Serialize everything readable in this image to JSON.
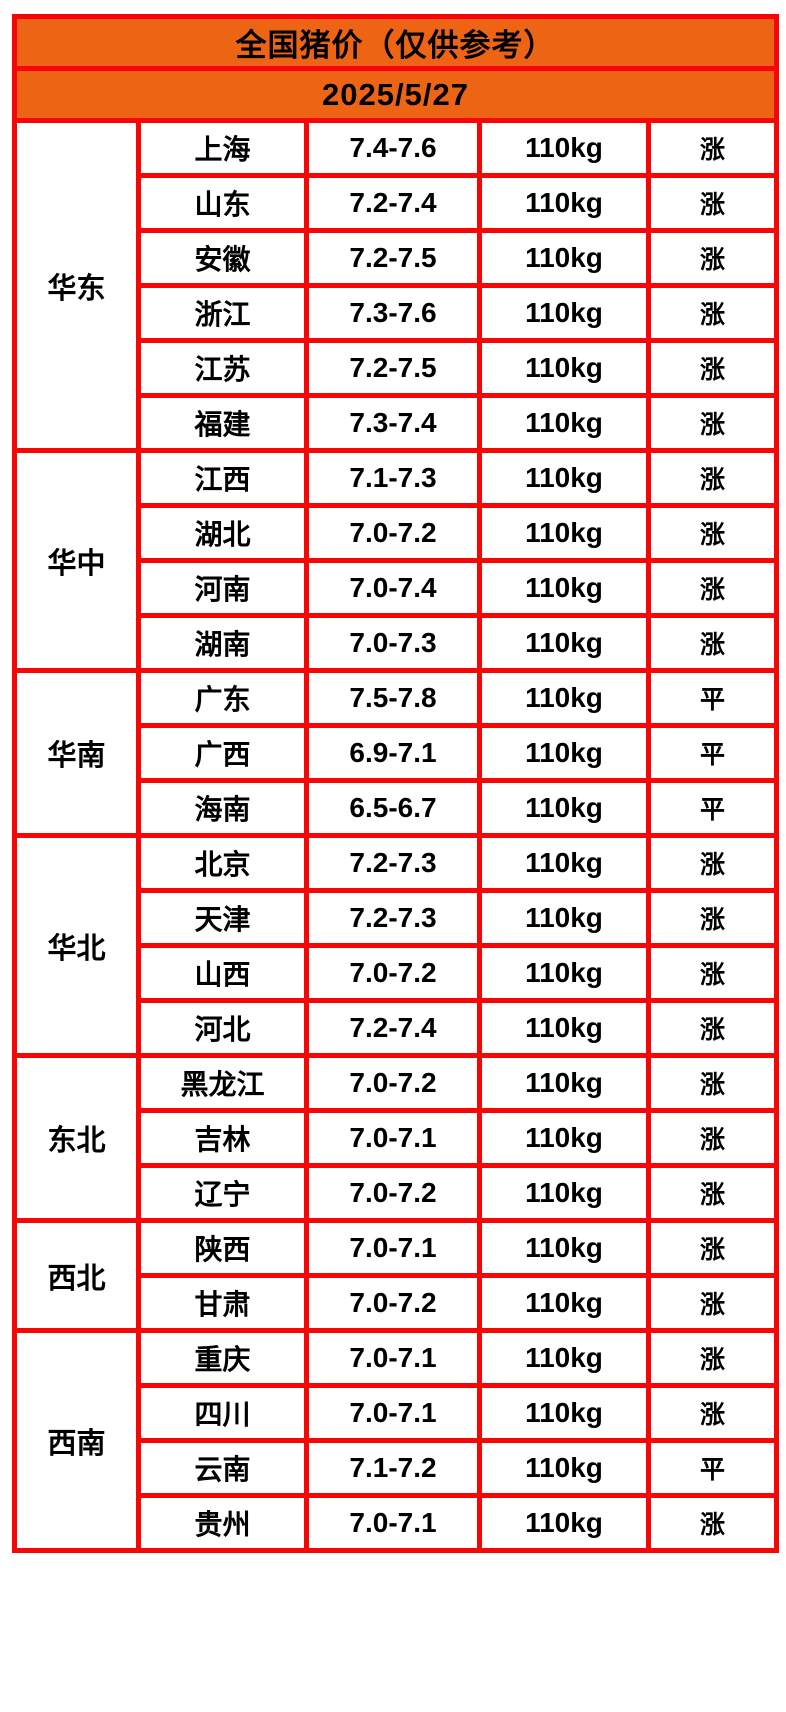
{
  "header": {
    "title": "全国猪价（仅供参考）",
    "date": "2025/5/27"
  },
  "colors": {
    "banner_orange": "#ec6414",
    "border_red": "#f90505",
    "rise_red": "#fa3e4e",
    "flat_black": "#000000"
  },
  "table": {
    "groups": [
      {
        "region": "华东",
        "rows": [
          {
            "province": "上海",
            "price": "7.4-7.6",
            "weight": "110kg",
            "status": "涨",
            "trend": "up"
          },
          {
            "province": "山东",
            "price": "7.2-7.4",
            "weight": "110kg",
            "status": "涨",
            "trend": "up"
          },
          {
            "province": "安徽",
            "price": "7.2-7.5",
            "weight": "110kg",
            "status": "涨",
            "trend": "up"
          },
          {
            "province": "浙江",
            "price": "7.3-7.6",
            "weight": "110kg",
            "status": "涨",
            "trend": "up"
          },
          {
            "province": "江苏",
            "price": "7.2-7.5",
            "weight": "110kg",
            "status": "涨",
            "trend": "up"
          },
          {
            "province": "福建",
            "price": "7.3-7.4",
            "weight": "110kg",
            "status": "涨",
            "trend": "up"
          }
        ]
      },
      {
        "region": "华中",
        "rows": [
          {
            "province": "江西",
            "price": "7.1-7.3",
            "weight": "110kg",
            "status": "涨",
            "trend": "up"
          },
          {
            "province": "湖北",
            "price": "7.0-7.2",
            "weight": "110kg",
            "status": "涨",
            "trend": "up"
          },
          {
            "province": "河南",
            "price": "7.0-7.4",
            "weight": "110kg",
            "status": "涨",
            "trend": "up"
          },
          {
            "province": "湖南",
            "price": "7.0-7.3",
            "weight": "110kg",
            "status": "涨",
            "trend": "up"
          }
        ]
      },
      {
        "region": "华南",
        "rows": [
          {
            "province": "广东",
            "price": "7.5-7.8",
            "weight": "110kg",
            "status": "平",
            "trend": "flat"
          },
          {
            "province": "广西",
            "price": "6.9-7.1",
            "weight": "110kg",
            "status": "平",
            "trend": "flat"
          },
          {
            "province": "海南",
            "price": "6.5-6.7",
            "weight": "110kg",
            "status": "平",
            "trend": "flat"
          }
        ]
      },
      {
        "region": "华北",
        "rows": [
          {
            "province": "北京",
            "price": "7.2-7.3",
            "weight": "110kg",
            "status": "涨",
            "trend": "up"
          },
          {
            "province": "天津",
            "price": "7.2-7.3",
            "weight": "110kg",
            "status": "涨",
            "trend": "up"
          },
          {
            "province": "山西",
            "price": "7.0-7.2",
            "weight": "110kg",
            "status": "涨",
            "trend": "up"
          },
          {
            "province": "河北",
            "price": "7.2-7.4",
            "weight": "110kg",
            "status": "涨",
            "trend": "up"
          }
        ]
      },
      {
        "region": "东北",
        "rows": [
          {
            "province": "黑龙江",
            "price": "7.0-7.2",
            "weight": "110kg",
            "status": "涨",
            "trend": "up"
          },
          {
            "province": "吉林",
            "price": "7.0-7.1",
            "weight": "110kg",
            "status": "涨",
            "trend": "up"
          },
          {
            "province": "辽宁",
            "price": "7.0-7.2",
            "weight": "110kg",
            "status": "涨",
            "trend": "up"
          }
        ]
      },
      {
        "region": "西北",
        "rows": [
          {
            "province": "陕西",
            "price": "7.0-7.1",
            "weight": "110kg",
            "status": "涨",
            "trend": "up"
          },
          {
            "province": "甘肃",
            "price": "7.0-7.2",
            "weight": "110kg",
            "status": "涨",
            "trend": "up"
          }
        ]
      },
      {
        "region": "西南",
        "rows": [
          {
            "province": "重庆",
            "price": "7.0-7.1",
            "weight": "110kg",
            "status": "涨",
            "trend": "up"
          },
          {
            "province": "四川",
            "price": "7.0-7.1",
            "weight": "110kg",
            "status": "涨",
            "trend": "up"
          },
          {
            "province": "云南",
            "price": "7.1-7.2",
            "weight": "110kg",
            "status": "平",
            "trend": "flat"
          },
          {
            "province": "贵州",
            "price": "7.0-7.1",
            "weight": "110kg",
            "status": "涨",
            "trend": "up"
          }
        ]
      }
    ]
  }
}
